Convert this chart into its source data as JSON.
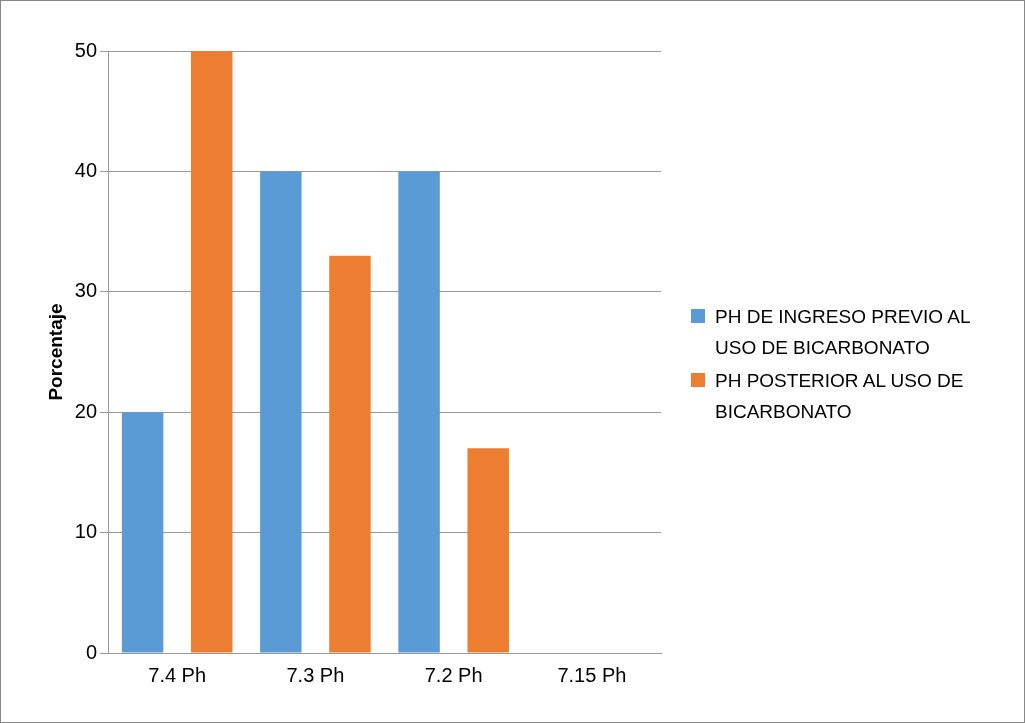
{
  "chart_data": {
    "type": "bar",
    "ylabel": "Porcentaje",
    "categories": [
      "7.4 Ph",
      "7.3 Ph",
      "7.2 Ph",
      "7.15 Ph"
    ],
    "series": [
      {
        "name": "PH DE INGRESO PREVIO AL USO DE BICARBONATO",
        "color": "#5b9bd5",
        "values": [
          20,
          40,
          40,
          0
        ]
      },
      {
        "name": "PH POSTERIOR AL USO DE BICARBONATO",
        "color": "#ed7d31",
        "values": [
          50,
          33,
          17,
          0
        ]
      }
    ],
    "ylim": [
      0,
      50
    ],
    "yticks": [
      0,
      10,
      20,
      30,
      40,
      50
    ],
    "grid": "y",
    "legend": "right"
  }
}
